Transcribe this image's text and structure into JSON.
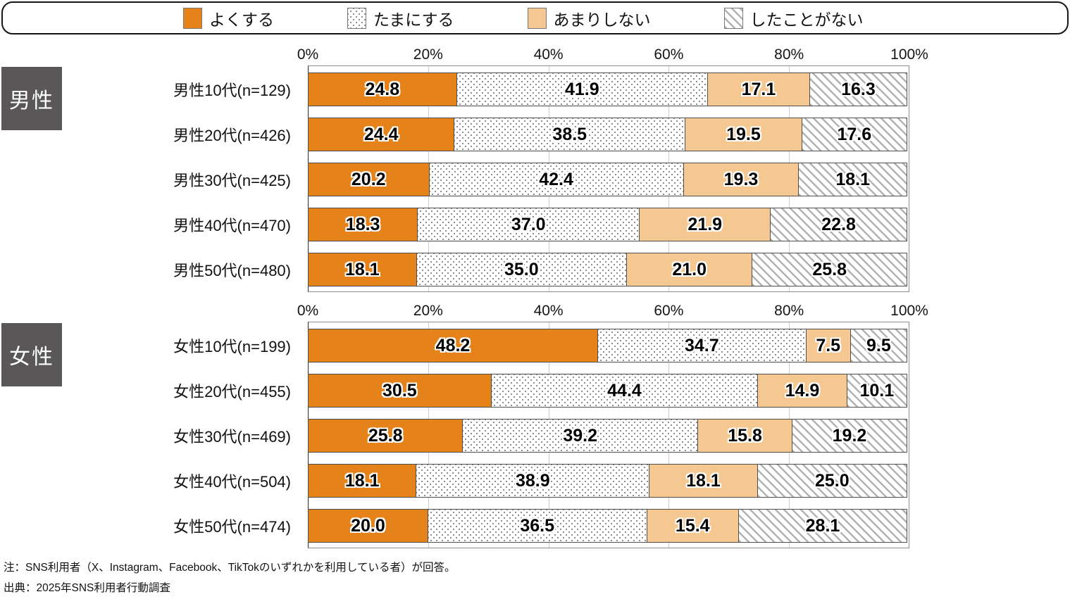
{
  "legend": {
    "items": [
      {
        "label": "よくする",
        "key": "often"
      },
      {
        "label": "たまにする",
        "key": "sometimes"
      },
      {
        "label": "あまりしない",
        "key": "rarely"
      },
      {
        "label": "したことがない",
        "key": "never"
      }
    ]
  },
  "colors": {
    "often": "#E6821A",
    "rarely": "#F5C891",
    "dot_pattern": "#8C8C8C",
    "hatch_pattern": "#B2B2B2",
    "badge_bg": "#595757",
    "badge_text": "#FFFFFF",
    "segment_border": "#4F4F4F",
    "gridline": "#CDCDCD"
  },
  "chart_data": {
    "type": "bar",
    "stacked": true,
    "orientation": "horizontal",
    "legend_position": "top",
    "xlim": [
      0,
      100
    ],
    "x_ticks": [
      "0%",
      "20%",
      "40%",
      "60%",
      "80%",
      "100%"
    ],
    "grid": true,
    "series_names": [
      "よくする",
      "たまにする",
      "あまりしない",
      "したことがない"
    ],
    "series_keys": [
      "often",
      "sometimes",
      "rarely",
      "never"
    ],
    "groups": [
      {
        "title": "男性",
        "rows": [
          {
            "label": "男性10代(n=129)",
            "values": [
              24.8,
              41.9,
              17.1,
              16.3
            ]
          },
          {
            "label": "男性20代(n=426)",
            "values": [
              24.4,
              38.5,
              19.5,
              17.6
            ]
          },
          {
            "label": "男性30代(n=425)",
            "values": [
              20.2,
              42.4,
              19.3,
              18.1
            ]
          },
          {
            "label": "男性40代(n=470)",
            "values": [
              18.3,
              37.0,
              21.9,
              22.8
            ]
          },
          {
            "label": "男性50代(n=480)",
            "values": [
              18.1,
              35.0,
              21.0,
              25.8
            ]
          }
        ]
      },
      {
        "title": "女性",
        "rows": [
          {
            "label": "女性10代(n=199)",
            "values": [
              48.2,
              34.7,
              7.5,
              9.5
            ]
          },
          {
            "label": "女性20代(n=455)",
            "values": [
              30.5,
              44.4,
              14.9,
              10.1
            ]
          },
          {
            "label": "女性30代(n=469)",
            "values": [
              25.8,
              39.2,
              15.8,
              19.2
            ]
          },
          {
            "label": "女性40代(n=504)",
            "values": [
              18.1,
              38.9,
              18.1,
              25.0
            ]
          },
          {
            "label": "女性50代(n=474)",
            "values": [
              20.0,
              36.5,
              15.4,
              28.1
            ]
          }
        ]
      }
    ]
  },
  "notes": {
    "note1": "注：SNS利用者（X、Instagram、Facebook、TikTokのいずれかを利用している者）が回答。",
    "note2": "出典：2025年SNS利用者行動調査"
  }
}
